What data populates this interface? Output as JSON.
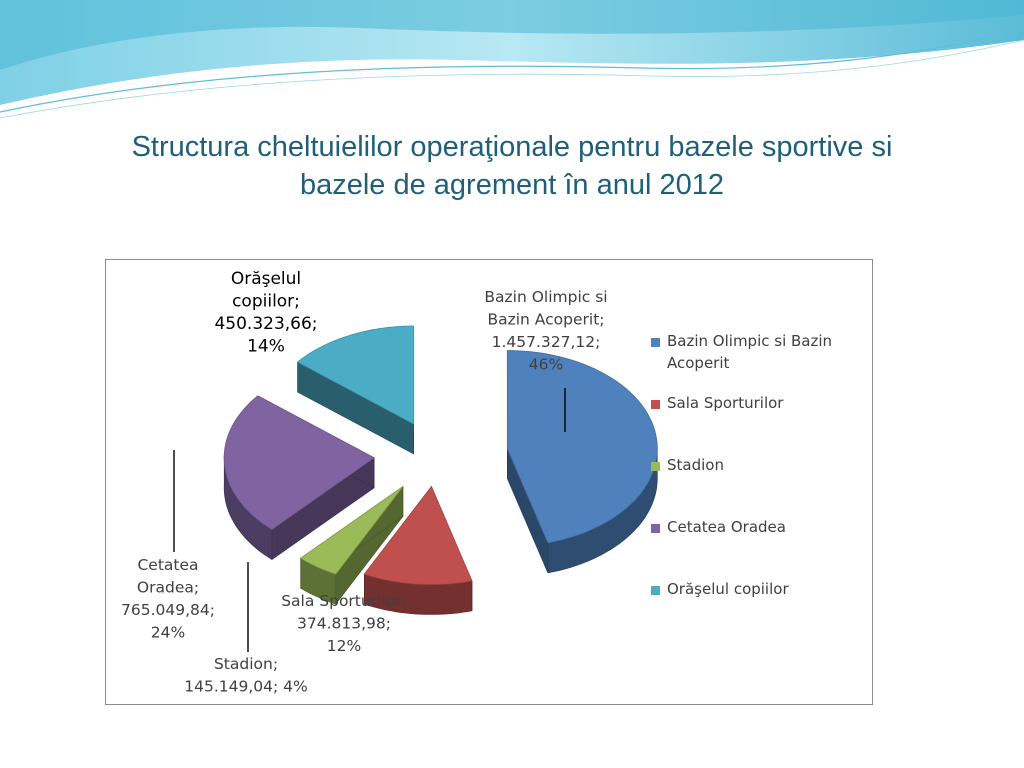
{
  "slide": {
    "title_line1": "Structura cheltuielilor operaţionale pentru bazele sportive si",
    "title_line2": "bazele de agrement în anul 2012"
  },
  "chart_data": {
    "type": "pie",
    "style": "3d-exploded",
    "legend_position": "right",
    "categories": [
      "Bazin Olimpic si Bazin Acoperit",
      "Sala Sporturilor",
      "Stadion",
      "Cetatea Oradea",
      "Orăşelul copiilor"
    ],
    "values": [
      1457327.12,
      374813.98,
      145149.04,
      765049.84,
      450323.66
    ],
    "percentages": [
      46,
      12,
      4,
      24,
      14
    ],
    "colors": [
      "#4f81bd",
      "#c0504d",
      "#9bbb59",
      "#8064a2",
      "#4bacc6"
    ],
    "legend": [
      "Bazin Olimpic si Bazin Acoperit",
      "Sala Sporturilor",
      "Stadion",
      "Cetatea Oradea",
      "Orăşelul copiilor"
    ],
    "data_labels": [
      [
        "Bazin Olimpic si",
        "Bazin Acoperit;",
        "1.457.327,12;",
        "46%"
      ],
      [
        "Sala Sporturilor;",
        "374.813,98;",
        "12%"
      ],
      [
        "Stadion;",
        "145.149,04; 4%"
      ],
      [
        "Cetatea",
        "Oradea;",
        "765.049,84;",
        "24%"
      ],
      [
        "Orăşelul",
        "copiilor;",
        "450.323,66;",
        "14%"
      ]
    ]
  }
}
